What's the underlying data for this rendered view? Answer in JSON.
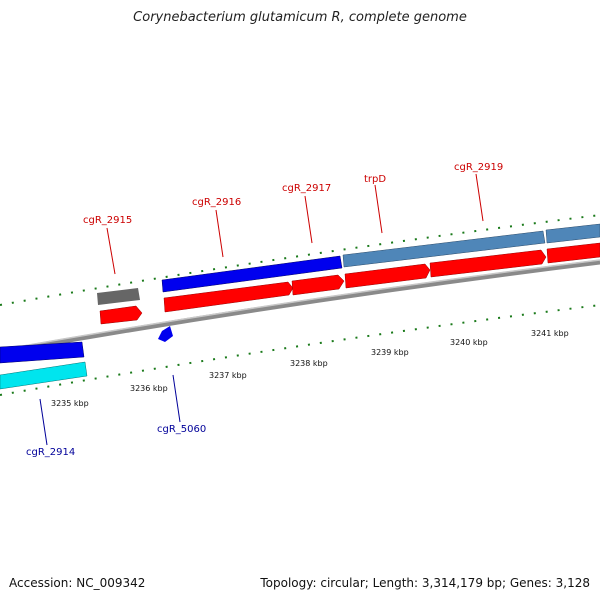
{
  "title": "Corynebacterium glutamicum R, complete genome",
  "accession": "Accession: NC_009342",
  "topology": "Topology: circular; Length: 3,314,179 bp; Genes: 3,128",
  "colors": {
    "label_forward": "#cc0000",
    "label_reverse": "#000099",
    "cds_red": "#ff0000",
    "gene_blue": "#0000ee",
    "gene_steel": "#4f86b8",
    "gene_cyan": "#00e5ee",
    "gene_gray": "#666666",
    "backbone": "#8a8a8a",
    "tick_green": "#1a7a1a"
  },
  "ticks": [
    "3235 kbp",
    "3236 kbp",
    "3237 kbp",
    "3238 kbp",
    "3239 kbp",
    "3240 kbp",
    "3241 kbp"
  ],
  "genes": [
    {
      "name": "cgR_2914",
      "strand": "reverse"
    },
    {
      "name": "cgR_2915",
      "strand": "forward"
    },
    {
      "name": "cgR_2916",
      "strand": "forward"
    },
    {
      "name": "cgR_2917",
      "strand": "forward"
    },
    {
      "name": "trpD",
      "strand": "forward"
    },
    {
      "name": "cgR_2919",
      "strand": "forward"
    },
    {
      "name": "cgR_5060",
      "strand": "reverse"
    }
  ]
}
